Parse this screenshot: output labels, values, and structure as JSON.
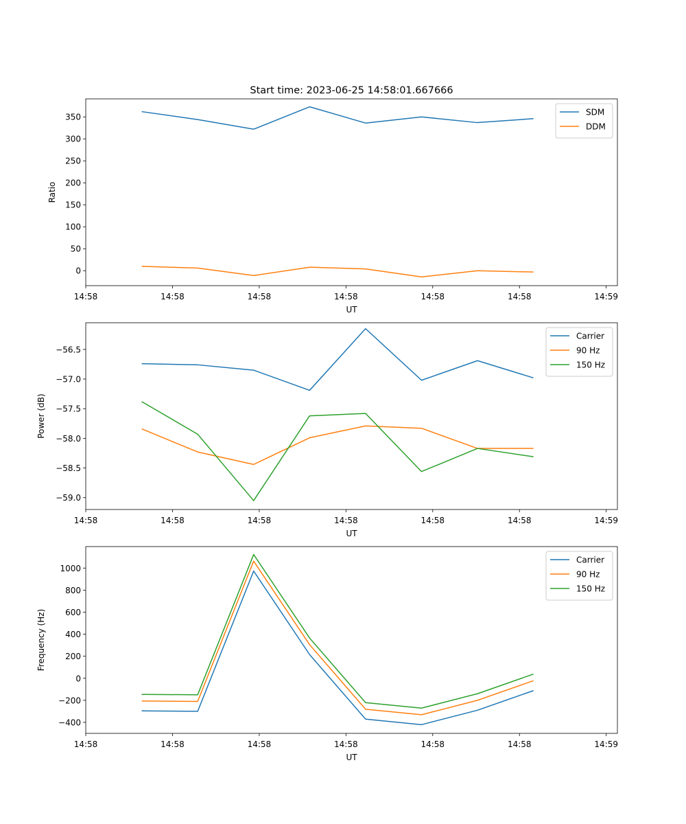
{
  "figure": {
    "title": "Start time: 2023-06-25 14:58:01.667666"
  },
  "chart_data": [
    {
      "type": "line",
      "title": "Start time: 2023-06-25 14:58:01.667666",
      "xlabel": "UT",
      "ylabel": "Ratio",
      "x": [
        1,
        2,
        3,
        4,
        5,
        6,
        7,
        8
      ],
      "xlim": [
        0,
        9.5
      ],
      "x_ticks": [
        {
          "value": 0,
          "label": "14:58"
        },
        {
          "value": 1.55,
          "label": "14:58"
        },
        {
          "value": 3.1,
          "label": "14:58"
        },
        {
          "value": 4.65,
          "label": "14:58"
        },
        {
          "value": 6.2,
          "label": "14:58"
        },
        {
          "value": 7.75,
          "label": "14:58"
        },
        {
          "value": 9.3,
          "label": "14:59"
        }
      ],
      "ylim": [
        -34,
        391
      ],
      "y_ticks": [
        0,
        50,
        100,
        150,
        200,
        250,
        300,
        350
      ],
      "legend": "top-right",
      "series": [
        {
          "name": "SDM",
          "color": "#1f77b4",
          "values": [
            362,
            344,
            322,
            373,
            336,
            350,
            337,
            346
          ]
        },
        {
          "name": "DDM",
          "color": "#ff7f0e",
          "values": [
            10,
            6,
            -11,
            8,
            4,
            -14,
            0,
            -3
          ]
        }
      ]
    },
    {
      "type": "line",
      "xlabel": "UT",
      "ylabel": "Power (dB)",
      "x": [
        1,
        2,
        3,
        4,
        5,
        6,
        7,
        8
      ],
      "xlim": [
        0,
        9.5
      ],
      "x_ticks": [
        {
          "value": 0,
          "label": "14:58"
        },
        {
          "value": 1.55,
          "label": "14:58"
        },
        {
          "value": 3.1,
          "label": "14:58"
        },
        {
          "value": 4.65,
          "label": "14:58"
        },
        {
          "value": 6.2,
          "label": "14:58"
        },
        {
          "value": 7.75,
          "label": "14:58"
        },
        {
          "value": 9.3,
          "label": "14:59"
        }
      ],
      "ylim": [
        -59.2,
        -56.05
      ],
      "y_ticks": [
        -59.0,
        -58.5,
        -58.0,
        -57.5,
        -57.0,
        -56.5
      ],
      "y_tick_labels": [
        "−59.0",
        "−58.5",
        "−58.0",
        "−57.5",
        "−57.0",
        "−56.5"
      ],
      "legend": "top-right",
      "series": [
        {
          "name": "Carrier",
          "color": "#1f77b4",
          "values": [
            -56.74,
            -56.76,
            -56.85,
            -57.19,
            -56.15,
            -57.02,
            -56.69,
            -56.98
          ]
        },
        {
          "name": "90 Hz",
          "color": "#ff7f0e",
          "values": [
            -57.84,
            -58.23,
            -58.44,
            -57.99,
            -57.79,
            -57.83,
            -58.17,
            -58.17
          ]
        },
        {
          "name": "150 Hz",
          "color": "#2ca02c",
          "values": [
            -57.38,
            -57.93,
            -59.05,
            -57.62,
            -57.58,
            -58.56,
            -58.17,
            -58.31
          ]
        }
      ]
    },
    {
      "type": "line",
      "xlabel": "UT",
      "ylabel": "Frequency (Hz)",
      "x": [
        1,
        2,
        3,
        4,
        5,
        6,
        7,
        8
      ],
      "xlim": [
        0,
        9.5
      ],
      "x_ticks": [
        {
          "value": 0,
          "label": "14:58"
        },
        {
          "value": 1.55,
          "label": "14:58"
        },
        {
          "value": 3.1,
          "label": "14:58"
        },
        {
          "value": 4.65,
          "label": "14:58"
        },
        {
          "value": 6.2,
          "label": "14:58"
        },
        {
          "value": 7.75,
          "label": "14:58"
        },
        {
          "value": 9.3,
          "label": "14:59"
        }
      ],
      "ylim": [
        -500,
        1195
      ],
      "y_ticks": [
        -400,
        -200,
        0,
        200,
        400,
        600,
        800,
        1000
      ],
      "y_tick_labels": [
        "−400",
        "−200",
        "0",
        "200",
        "400",
        "600",
        "800",
        "1000"
      ],
      "legend": "top-right",
      "series": [
        {
          "name": "Carrier",
          "color": "#1f77b4",
          "values": [
            -296,
            -300,
            973,
            215,
            -371,
            -421,
            -290,
            -112
          ]
        },
        {
          "name": "90 Hz",
          "color": "#ff7f0e",
          "values": [
            -206,
            -210,
            1063,
            305,
            -281,
            -331,
            -200,
            -22
          ]
        },
        {
          "name": "150 Hz",
          "color": "#2ca02c",
          "values": [
            -146,
            -150,
            1123,
            365,
            -221,
            -271,
            -140,
            38
          ]
        }
      ]
    }
  ]
}
